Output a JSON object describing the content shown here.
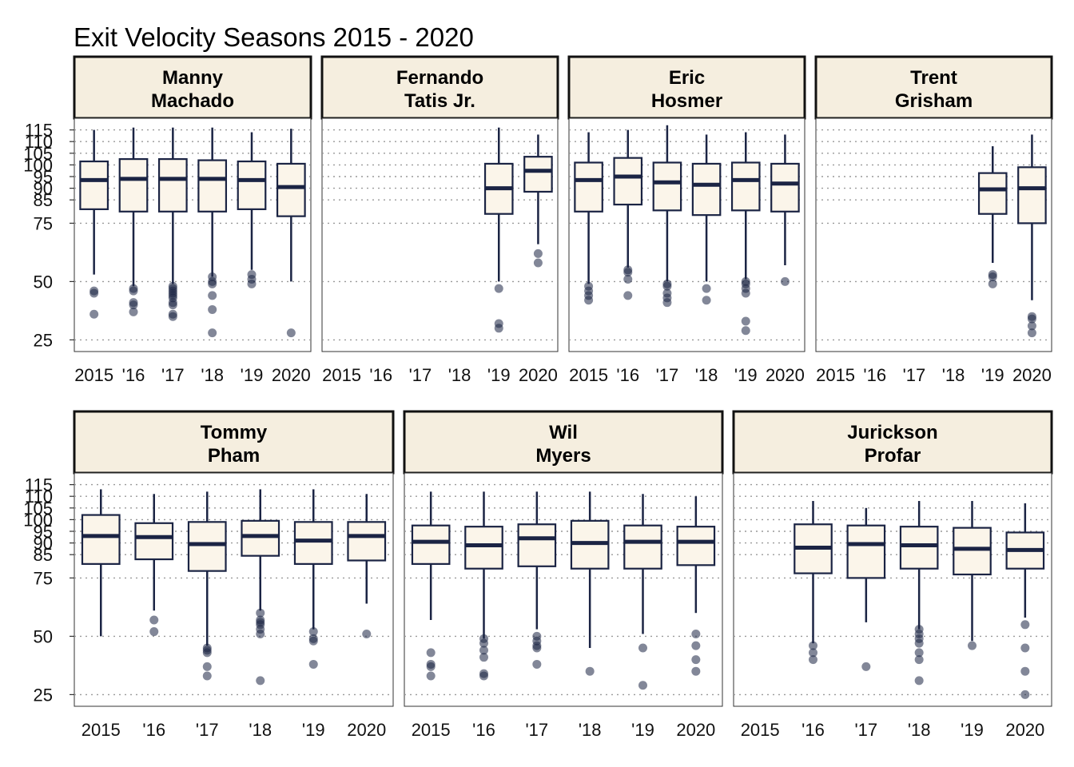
{
  "chart_data": {
    "type": "boxplot",
    "title": "Exit Velocity Seasons 2015 - 2020",
    "xlabel": "",
    "ylabel": "",
    "ylim": [
      20,
      120
    ],
    "y_ticks": [
      25,
      50,
      75,
      85,
      90,
      95,
      100,
      105,
      110,
      115
    ],
    "categories": [
      "2015",
      "'16",
      "'17",
      "'18",
      "'19",
      "2020"
    ],
    "grid": "horizontal dotted",
    "colors": {
      "box_fill": "#fbf5ea",
      "box_line": "#1b2444",
      "strip_fill": "#f5eedf",
      "outlier": "#1b2444",
      "grid": "#999999"
    },
    "panels": [
      {
        "name": "Manny\nMachado",
        "boxes": [
          {
            "cat": "2015",
            "whislo": 53,
            "q1": 81,
            "med": 93.5,
            "q3": 101.5,
            "whishi": 115,
            "outliers": [
              46,
              45,
              36
            ]
          },
          {
            "cat": "'16",
            "whislo": 48,
            "q1": 80,
            "med": 94,
            "q3": 102.5,
            "whishi": 116,
            "outliers": [
              47,
              46,
              41,
              40,
              37
            ]
          },
          {
            "cat": "'17",
            "whislo": 49,
            "q1": 80,
            "med": 94,
            "q3": 102.5,
            "whishi": 116,
            "outliers": [
              48,
              47,
              46,
              45,
              44,
              43,
              41,
              40,
              36,
              35
            ]
          },
          {
            "cat": "'18",
            "whislo": 52,
            "q1": 80,
            "med": 94,
            "q3": 102,
            "whishi": 116,
            "outliers": [
              52,
              50,
              49,
              44,
              38,
              28
            ]
          },
          {
            "cat": "'19",
            "whislo": 55,
            "q1": 81,
            "med": 93.5,
            "q3": 101.5,
            "whishi": 114,
            "outliers": [
              53,
              51,
              49
            ]
          },
          {
            "cat": "2020",
            "whislo": 50,
            "q1": 78,
            "med": 90.5,
            "q3": 100.5,
            "whishi": 115.5,
            "outliers": [
              28
            ]
          }
        ]
      },
      {
        "name": "Fernando\nTatis Jr.",
        "boxes": [
          {
            "cat": "'19",
            "whislo": 50,
            "q1": 79,
            "med": 90,
            "q3": 100.5,
            "whishi": 116,
            "outliers": [
              47,
              32,
              30
            ]
          },
          {
            "cat": "2020",
            "whislo": 66,
            "q1": 88.5,
            "med": 97.5,
            "q3": 103.5,
            "whishi": 113,
            "outliers": [
              62,
              58
            ]
          }
        ]
      },
      {
        "name": "Eric\nHosmer",
        "boxes": [
          {
            "cat": "2015",
            "whislo": 49,
            "q1": 80,
            "med": 93.5,
            "q3": 101,
            "whishi": 114,
            "outliers": [
              48,
              46,
              44,
              42
            ]
          },
          {
            "cat": "'16",
            "whislo": 56,
            "q1": 83,
            "med": 95,
            "q3": 103,
            "whishi": 115,
            "outliers": [
              55,
              54,
              51,
              44
            ]
          },
          {
            "cat": "'17",
            "whislo": 50,
            "q1": 80.5,
            "med": 92.5,
            "q3": 101,
            "whishi": 117,
            "outliers": [
              49,
              48,
              45,
              43,
              41
            ]
          },
          {
            "cat": "'18",
            "whislo": 50,
            "q1": 78.5,
            "med": 91.5,
            "q3": 100.5,
            "whishi": 113,
            "outliers": [
              47,
              42
            ]
          },
          {
            "cat": "'19",
            "whislo": 51,
            "q1": 80.5,
            "med": 93.5,
            "q3": 101,
            "whishi": 114,
            "outliers": [
              50,
              49,
              47,
              45,
              33,
              29
            ]
          },
          {
            "cat": "2020",
            "whislo": 57,
            "q1": 80,
            "med": 92,
            "q3": 100.5,
            "whishi": 113,
            "outliers": [
              50
            ]
          }
        ]
      },
      {
        "name": "Trent\nGrisham",
        "boxes": [
          {
            "cat": "'19",
            "whislo": 58,
            "q1": 79,
            "med": 89.5,
            "q3": 96.5,
            "whishi": 108,
            "outliers": [
              53,
              52,
              49
            ]
          },
          {
            "cat": "2020",
            "whislo": 42,
            "q1": 75,
            "med": 90,
            "q3": 99,
            "whishi": 113,
            "outliers": [
              35,
              34,
              31,
              28
            ]
          }
        ]
      },
      {
        "name": "Tommy\nPham",
        "boxes": [
          {
            "cat": "2015",
            "whislo": 50,
            "q1": 81,
            "med": 93,
            "q3": 102,
            "whishi": 113,
            "outliers": []
          },
          {
            "cat": "'16",
            "whislo": 61,
            "q1": 83,
            "med": 92.5,
            "q3": 98.5,
            "whishi": 111,
            "outliers": [
              57,
              52
            ]
          },
          {
            "cat": "'17",
            "whislo": 46,
            "q1": 78,
            "med": 89.5,
            "q3": 99,
            "whishi": 112,
            "outliers": [
              45,
              44,
              43,
              37,
              33
            ]
          },
          {
            "cat": "'18",
            "whislo": 61,
            "q1": 84.5,
            "med": 93,
            "q3": 99.5,
            "whishi": 113,
            "outliers": [
              60,
              57,
              56,
              55,
              53,
              51,
              31
            ]
          },
          {
            "cat": "'19",
            "whislo": 53,
            "q1": 81,
            "med": 91,
            "q3": 99,
            "whishi": 113,
            "outliers": [
              52,
              49,
              48,
              38
            ]
          },
          {
            "cat": "2020",
            "whislo": 64,
            "q1": 82.5,
            "med": 93,
            "q3": 99,
            "whishi": 111,
            "outliers": [
              51
            ]
          }
        ]
      },
      {
        "name": "Wil\nMyers",
        "boxes": [
          {
            "cat": "2015",
            "whislo": 57,
            "q1": 81,
            "med": 90.5,
            "q3": 97.5,
            "whishi": 112,
            "outliers": [
              43,
              38,
              37,
              33
            ]
          },
          {
            "cat": "'16",
            "whislo": 49,
            "q1": 79,
            "med": 89,
            "q3": 97,
            "whishi": 112,
            "outliers": [
              49,
              47,
              44,
              41,
              34,
              33
            ]
          },
          {
            "cat": "'17",
            "whislo": 53,
            "q1": 80,
            "med": 92,
            "q3": 98,
            "whishi": 112,
            "outliers": [
              50,
              48,
              46,
              45,
              38
            ]
          },
          {
            "cat": "'18",
            "whislo": 45,
            "q1": 79,
            "med": 90,
            "q3": 99.5,
            "whishi": 112,
            "outliers": [
              35
            ]
          },
          {
            "cat": "'19",
            "whislo": 51,
            "q1": 79,
            "med": 90.5,
            "q3": 97.5,
            "whishi": 111,
            "outliers": [
              45,
              29
            ]
          },
          {
            "cat": "2020",
            "whislo": 60,
            "q1": 80.5,
            "med": 90.5,
            "q3": 97,
            "whishi": 110,
            "outliers": [
              51,
              46,
              40,
              35
            ]
          }
        ]
      },
      {
        "name": "Jurickson\nProfar",
        "boxes": [
          {
            "cat": "'16",
            "whislo": 47,
            "q1": 77,
            "med": 88,
            "q3": 98,
            "whishi": 108,
            "outliers": [
              46,
              43,
              40
            ]
          },
          {
            "cat": "'17",
            "whislo": 56,
            "q1": 75,
            "med": 89.5,
            "q3": 97.5,
            "whishi": 105,
            "outliers": [
              37
            ]
          },
          {
            "cat": "'18",
            "whislo": 53,
            "q1": 79,
            "med": 89,
            "q3": 97,
            "whishi": 108,
            "outliers": [
              53,
              51,
              49,
              47,
              43,
              40,
              31
            ]
          },
          {
            "cat": "'19",
            "whislo": 48,
            "q1": 76.5,
            "med": 87.5,
            "q3": 96.5,
            "whishi": 108,
            "outliers": [
              46
            ]
          },
          {
            "cat": "2020",
            "whislo": 58,
            "q1": 79,
            "med": 87,
            "q3": 94.5,
            "whishi": 107,
            "outliers": [
              55,
              45,
              35,
              25
            ]
          }
        ]
      }
    ]
  }
}
